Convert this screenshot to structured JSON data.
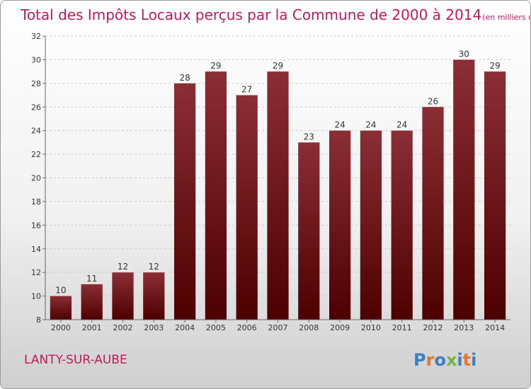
{
  "chart_data": {
    "type": "bar",
    "title": "Total des Impôts Locaux perçus par la Commune de 2000 à 2014",
    "unit_label": "(en milliers d'€)",
    "categories": [
      "2000",
      "2001",
      "2002",
      "2003",
      "2004",
      "2005",
      "2006",
      "2007",
      "2008",
      "2009",
      "2010",
      "2011",
      "2012",
      "2013",
      "2014"
    ],
    "values": [
      10,
      11,
      12,
      12,
      28,
      29,
      27,
      29,
      23,
      24,
      24,
      24,
      26,
      30,
      29
    ],
    "ylim": [
      8,
      32
    ],
    "yticks": [
      8,
      10,
      12,
      14,
      16,
      18,
      20,
      22,
      24,
      26,
      28,
      30,
      32
    ],
    "grid": true,
    "bar_color_top": "#8b2e35",
    "bar_color_bottom": "#4d0000"
  },
  "commune_name": "LANTY-SUR-AUBE",
  "logo": {
    "text": "Proxiti",
    "letters": [
      "P",
      "r",
      "o",
      "x",
      "i",
      "t",
      "i"
    ],
    "colors": [
      "#3a7fc1",
      "#e8742b",
      "#3a7fc1",
      "#7cb342",
      "#3a7fc1",
      "#e8742b",
      "#3a7fc1"
    ]
  },
  "colors": {
    "title": "#c2185b",
    "grid": "#cccccc",
    "axis": "#666666"
  }
}
